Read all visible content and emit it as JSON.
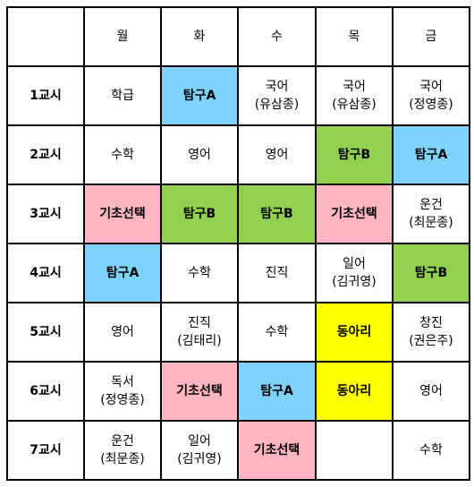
{
  "colors": {
    "blue": "#7fd3fb",
    "green": "#92d050",
    "pink": "#ffb6c1",
    "yellow": "#ffff00",
    "white": "#ffffff",
    "border": "#000000"
  },
  "days": [
    "월",
    "화",
    "수",
    "목",
    "금"
  ],
  "rows": [
    {
      "period": "1교시",
      "cells": [
        {
          "lines": [
            "학급"
          ],
          "color": "white"
        },
        {
          "lines": [
            "탐구A"
          ],
          "color": "blue"
        },
        {
          "lines": [
            "국어",
            "(유삼종)"
          ],
          "color": "white"
        },
        {
          "lines": [
            "국어",
            "(유삼종)"
          ],
          "color": "white"
        },
        {
          "lines": [
            "국어",
            "(정영종)"
          ],
          "color": "white"
        }
      ]
    },
    {
      "period": "2교시",
      "cells": [
        {
          "lines": [
            "수학"
          ],
          "color": "white"
        },
        {
          "lines": [
            "영어"
          ],
          "color": "white"
        },
        {
          "lines": [
            "영어"
          ],
          "color": "white"
        },
        {
          "lines": [
            "탐구B"
          ],
          "color": "green"
        },
        {
          "lines": [
            "탐구A"
          ],
          "color": "blue"
        }
      ]
    },
    {
      "period": "3교시",
      "cells": [
        {
          "lines": [
            "기초선택"
          ],
          "color": "pink"
        },
        {
          "lines": [
            "탐구B"
          ],
          "color": "green"
        },
        {
          "lines": [
            "탐구B"
          ],
          "color": "green"
        },
        {
          "lines": [
            "기초선택"
          ],
          "color": "pink"
        },
        {
          "lines": [
            "운건",
            "(최문종)"
          ],
          "color": "white"
        }
      ]
    },
    {
      "period": "4교시",
      "cells": [
        {
          "lines": [
            "탐구A"
          ],
          "color": "blue"
        },
        {
          "lines": [
            "수학"
          ],
          "color": "white"
        },
        {
          "lines": [
            "진직"
          ],
          "color": "white"
        },
        {
          "lines": [
            "일어",
            "(김귀영)"
          ],
          "color": "white"
        },
        {
          "lines": [
            "탐구B"
          ],
          "color": "green"
        }
      ]
    },
    {
      "period": "5교시",
      "cells": [
        {
          "lines": [
            "영어"
          ],
          "color": "white"
        },
        {
          "lines": [
            "진직",
            "(김태리)"
          ],
          "color": "white"
        },
        {
          "lines": [
            "수학"
          ],
          "color": "white"
        },
        {
          "lines": [
            "동아리"
          ],
          "color": "yellow"
        },
        {
          "lines": [
            "창진",
            "(권은주)"
          ],
          "color": "white"
        }
      ]
    },
    {
      "period": "6교시",
      "cells": [
        {
          "lines": [
            "독서",
            "(정영종)"
          ],
          "color": "white"
        },
        {
          "lines": [
            "기초선택"
          ],
          "color": "pink"
        },
        {
          "lines": [
            "탐구A"
          ],
          "color": "blue"
        },
        {
          "lines": [
            "동아리"
          ],
          "color": "yellow"
        },
        {
          "lines": [
            "영어"
          ],
          "color": "white"
        }
      ]
    },
    {
      "period": "7교시",
      "cells": [
        {
          "lines": [
            "운건",
            "(최문종)"
          ],
          "color": "white"
        },
        {
          "lines": [
            "일어",
            "(김귀영)"
          ],
          "color": "white"
        },
        {
          "lines": [
            "기초선택"
          ],
          "color": "pink"
        },
        {
          "lines": [],
          "color": "white"
        },
        {
          "lines": [
            "수학"
          ],
          "color": "white"
        }
      ]
    }
  ]
}
